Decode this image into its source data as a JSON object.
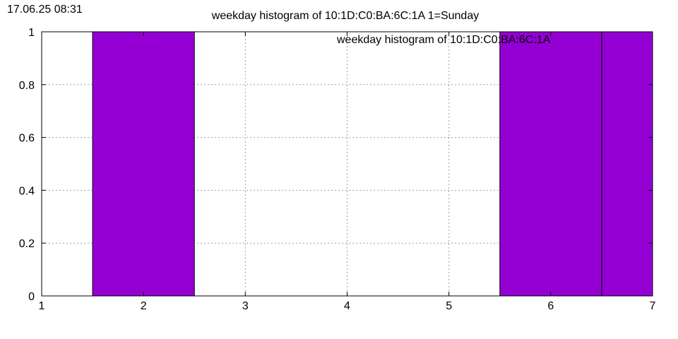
{
  "timestamp": "17.06.25 08:31",
  "chart_data": {
    "type": "bar",
    "title": "weekday histogram of 10:1D:C0:BA:6C:1A 1=Sunday",
    "legend_label": "weekday histogram of 10:1D:C0:BA:6C:1A",
    "legend_position": "top-right",
    "xlabel": "",
    "ylabel": "",
    "grid": true,
    "xlim": [
      1,
      7
    ],
    "ylim": [
      0,
      1
    ],
    "x_ticks": [
      "1",
      "2",
      "3",
      "4",
      "5",
      "6",
      "7"
    ],
    "y_ticks": [
      "0",
      "0.2",
      "0.4",
      "0.6",
      "0.8",
      "1"
    ],
    "bar_width": 1,
    "bar_color": "#9400d3",
    "points": [
      {
        "x": 2,
        "value": 1
      },
      {
        "x": 6,
        "value": 1
      },
      {
        "x": 7,
        "value": 1
      }
    ]
  }
}
